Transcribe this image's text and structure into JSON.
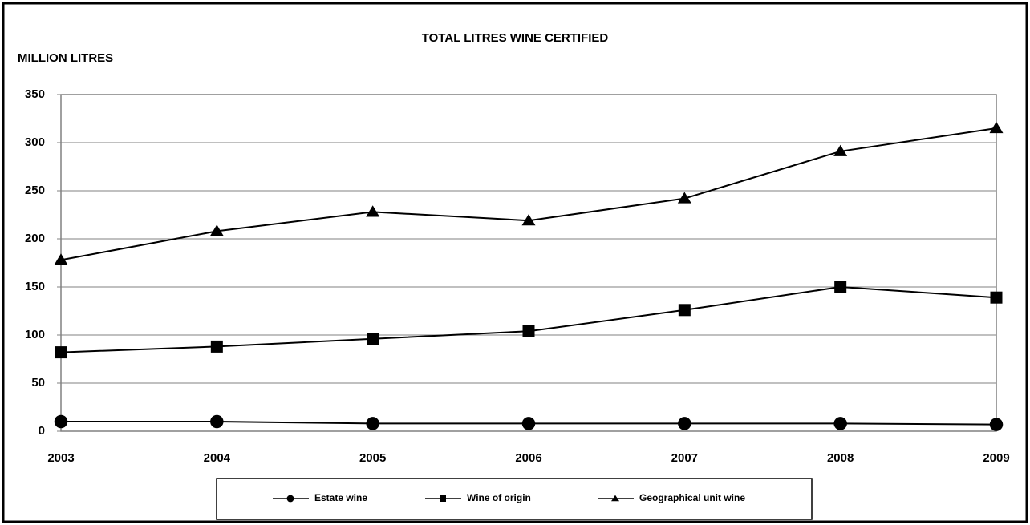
{
  "chart_data": {
    "type": "line",
    "title": "TOTAL LITRES WINE CERTIFIED",
    "y_label": "MILLION LITRES",
    "categories": [
      "2003",
      "2004",
      "2005",
      "2006",
      "2007",
      "2008",
      "2009"
    ],
    "series": [
      {
        "name": "Estate wine",
        "color": "#000000",
        "marker": "circle",
        "values": [
          10,
          10,
          8,
          8,
          8,
          8,
          7
        ]
      },
      {
        "name": "Wine of origin",
        "color": "#000000",
        "marker": "square",
        "values": [
          82,
          88,
          96,
          104,
          126,
          150,
          139
        ]
      },
      {
        "name": "Geographical unit wine",
        "color": "#000000",
        "marker": "triangle",
        "values": [
          178,
          208,
          228,
          219,
          242,
          291,
          315
        ]
      }
    ],
    "ylim": [
      0,
      350
    ],
    "yticks": [
      0,
      50,
      100,
      150,
      200,
      250,
      300,
      350
    ],
    "grid": true,
    "legend": "bottom"
  }
}
